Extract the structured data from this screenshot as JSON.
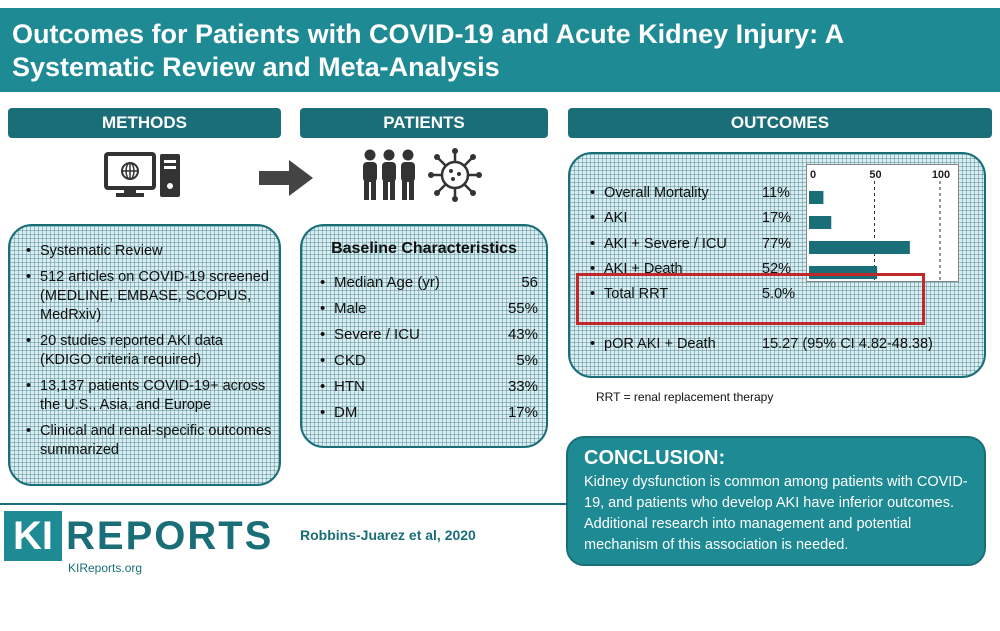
{
  "title": "Outcomes for Patients with COVID-19 and Acute Kidney Injury: A Systematic Review and Meta-Analysis",
  "sections": {
    "methods": "METHODS",
    "patients": "PATIENTS",
    "outcomes": "OUTCOMES"
  },
  "methods": {
    "items": [
      "Systematic Review",
      "512 articles on COVID-19 screened (MEDLINE, EMBASE, SCOPUS, MedRxiv)",
      "20 studies reported AKI data (KDIGO criteria required)",
      "13,137 patients COVID-19+ across the U.S., Asia, and Europe",
      "Clinical and renal-specific outcomes summarized"
    ]
  },
  "patients": {
    "title": "Baseline Characteristics",
    "rows": [
      {
        "label": "Median Age (yr)",
        "value": "56"
      },
      {
        "label": "Male",
        "value": "55%"
      },
      {
        "label": "Severe / ICU",
        "value": "43%"
      },
      {
        "label": "CKD",
        "value": "5%"
      },
      {
        "label": "HTN",
        "value": "33%"
      },
      {
        "label": "DM",
        "value": "17%"
      }
    ]
  },
  "outcomes": {
    "rows": [
      {
        "label": "Overall Mortality",
        "value": "11%"
      },
      {
        "label": "AKI",
        "value": "17%"
      },
      {
        "label": "AKI + Severe / ICU",
        "value": "77%"
      },
      {
        "label": "AKI + Death",
        "value": "52%"
      },
      {
        "label": "Total RRT",
        "value": "5.0%"
      }
    ],
    "por": {
      "label": "pOR AKI + Death",
      "value": "15.27 (95% CI 4.82-48.38)"
    },
    "footnote": "RRT = renal replacement therapy"
  },
  "chart_data": {
    "type": "bar",
    "orientation": "horizontal",
    "categories": [
      "Overall Mortality",
      "AKI",
      "AKI + Severe / ICU",
      "AKI + Death",
      "Total RRT"
    ],
    "values": [
      11,
      17,
      77,
      52,
      5.0
    ],
    "ticks": [
      "0",
      "50",
      "100"
    ],
    "xlim": [
      0,
      100
    ],
    "grid": true,
    "bar_color": "#1a6e78"
  },
  "conclusion": {
    "title": "CONCLUSION:",
    "text": "Kidney dysfunction is common among patients with COVID-19, and patients who develop AKI have inferior outcomes. Additional research into management and potential mechanism of this association is needed."
  },
  "footer": {
    "logo_ki": "KI",
    "logo_reports": "REPORTS",
    "logo_url": "KIReports.org",
    "citation": "Robbins-Juarez et al, 2020"
  },
  "colors": {
    "banner": "#1d8a94",
    "header": "#1a6e78",
    "highlight": "#c0282a"
  },
  "icons": [
    "computer-icon",
    "right-arrow-icon",
    "people-icon",
    "virus-icon"
  ]
}
